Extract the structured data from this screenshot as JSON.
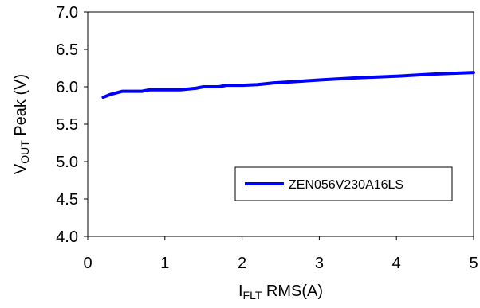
{
  "chart_data": {
    "type": "line",
    "title": "",
    "xlabel": {
      "main": "I",
      "sub": "FLT",
      "rest": " RMS(A)"
    },
    "ylabel": {
      "main": "V",
      "sub": "OUT",
      "rest": " Peak (V)"
    },
    "xlim": [
      0,
      5
    ],
    "ylim": [
      4.0,
      7.0
    ],
    "xticks": [
      "0",
      "1",
      "2",
      "3",
      "4",
      "5"
    ],
    "yticks": [
      "4.0",
      "4.5",
      "5.0",
      "5.5",
      "6.0",
      "6.5",
      "7.0"
    ],
    "grid": false,
    "legend_position": "lower-right",
    "series": [
      {
        "name": "ZEN056V230A16LS",
        "color": "#0000FF",
        "x": [
          0.2,
          0.3,
          0.45,
          0.7,
          0.8,
          1.0,
          1.2,
          1.4,
          1.5,
          1.7,
          1.8,
          2.0,
          2.2,
          2.4,
          3.0,
          3.5,
          4.0,
          4.5,
          5.0
        ],
        "y": [
          5.86,
          5.9,
          5.94,
          5.94,
          5.96,
          5.96,
          5.96,
          5.98,
          6.0,
          6.0,
          6.02,
          6.02,
          6.03,
          6.05,
          6.09,
          6.12,
          6.14,
          6.17,
          6.19
        ]
      }
    ]
  }
}
